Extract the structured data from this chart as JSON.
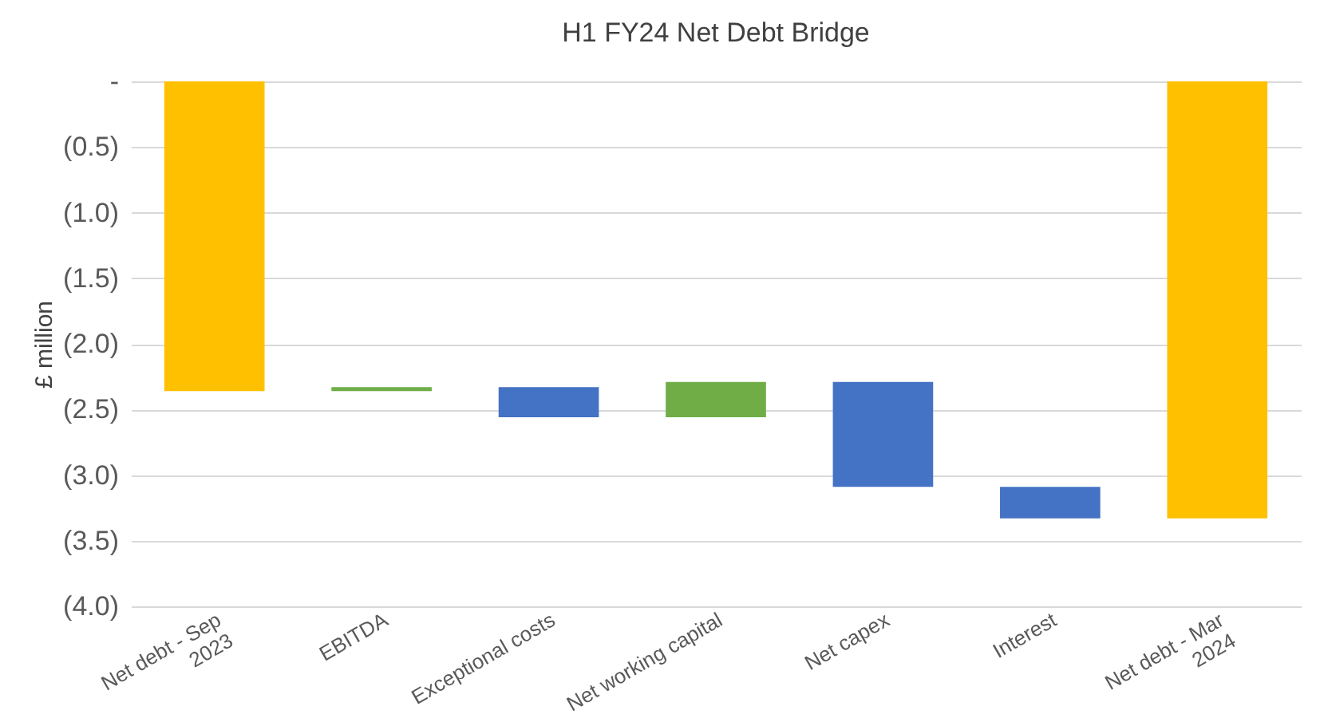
{
  "chart_data": {
    "type": "bar",
    "title": "H1 FY24 Net Debt Bridge",
    "ylabel": "£ million",
    "categories": [
      "Net debt - Sep 2023",
      "EBITDA",
      "Exceptional costs",
      "Net working capital",
      "Net capex",
      "Interest",
      "Net debt - Mar 2024"
    ],
    "values": [
      -2.36,
      0.03,
      -0.23,
      0.27,
      -0.8,
      -0.24,
      -3.33
    ],
    "base": [
      0,
      -2.36,
      -2.33,
      -2.56,
      -2.29,
      -3.09,
      0
    ],
    "colors": [
      "#ffc000",
      "#70ad47",
      "#4472c4",
      "#70ad47",
      "#4472c4",
      "#4472c4",
      "#ffc000"
    ],
    "ylim": [
      -4,
      0
    ],
    "yticks": [
      {
        "value": 0,
        "label": "-"
      },
      {
        "value": -0.5,
        "label": "(0.5)"
      },
      {
        "value": -1,
        "label": "(1.0)"
      },
      {
        "value": -1.5,
        "label": "(1.5)"
      },
      {
        "value": -2,
        "label": "(2.0)"
      },
      {
        "value": -2.5,
        "label": "(2.5)"
      },
      {
        "value": -3,
        "label": "(3.0)"
      },
      {
        "value": -3.5,
        "label": "(3.5)"
      },
      {
        "value": -4,
        "label": "(4.0)"
      }
    ],
    "grid": "y"
  }
}
